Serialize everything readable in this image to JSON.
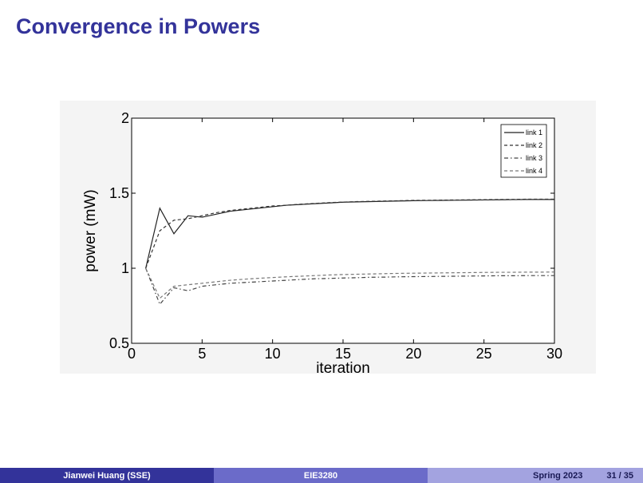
{
  "slide": {
    "title": "Convergence in Powers"
  },
  "footer": {
    "author": "Jianwei Huang  (SSE)",
    "course": "EIE3280",
    "term": "Spring 2023",
    "page": "31 / 35"
  },
  "chart_data": {
    "type": "line",
    "xlabel": "iteration",
    "ylabel": "power (mW)",
    "xlim": [
      0,
      30
    ],
    "ylim": [
      0.5,
      2
    ],
    "xticks": [
      0,
      5,
      10,
      15,
      20,
      25,
      30
    ],
    "yticks": [
      0.5,
      1,
      1.5,
      2
    ],
    "ytick_labels": [
      "0.5",
      "1",
      "1.5",
      "2"
    ],
    "grid": false,
    "legend_position": "top-right",
    "x": [
      1,
      2,
      3,
      4,
      5,
      6,
      7,
      8,
      9,
      10,
      11,
      12,
      13,
      14,
      15,
      16,
      17,
      18,
      19,
      20,
      21,
      22,
      23,
      24,
      25,
      26,
      27,
      28,
      29,
      30
    ],
    "series": [
      {
        "name": "link 1",
        "style": "solid",
        "color": "#222222",
        "values": [
          1.0,
          1.4,
          1.23,
          1.35,
          1.34,
          1.36,
          1.38,
          1.39,
          1.4,
          1.41,
          1.42,
          1.425,
          1.43,
          1.435,
          1.44,
          1.442,
          1.444,
          1.446,
          1.448,
          1.45,
          1.451,
          1.452,
          1.453,
          1.454,
          1.455,
          1.456,
          1.457,
          1.458,
          1.458,
          1.458
        ]
      },
      {
        "name": "link 2",
        "style": "dashed",
        "color": "#333333",
        "values": [
          1.0,
          1.25,
          1.32,
          1.33,
          1.35,
          1.37,
          1.385,
          1.395,
          1.405,
          1.415,
          1.42,
          1.427,
          1.432,
          1.437,
          1.441,
          1.444,
          1.446,
          1.448,
          1.45,
          1.452,
          1.453,
          1.454,
          1.455,
          1.456,
          1.457,
          1.458,
          1.459,
          1.46,
          1.46,
          1.46
        ]
      },
      {
        "name": "link 3",
        "style": "dashdot",
        "color": "#444444",
        "values": [
          1.0,
          0.76,
          0.87,
          0.85,
          0.88,
          0.89,
          0.9,
          0.905,
          0.91,
          0.915,
          0.92,
          0.925,
          0.93,
          0.932,
          0.935,
          0.937,
          0.94,
          0.941,
          0.943,
          0.944,
          0.945,
          0.946,
          0.947,
          0.948,
          0.949,
          0.95,
          0.95,
          0.951,
          0.951,
          0.951
        ]
      },
      {
        "name": "link 4",
        "style": "dashed",
        "color": "#777777",
        "values": [
          1.0,
          0.8,
          0.88,
          0.89,
          0.9,
          0.91,
          0.92,
          0.927,
          0.933,
          0.938,
          0.943,
          0.947,
          0.951,
          0.955,
          0.958,
          0.96,
          0.962,
          0.964,
          0.966,
          0.967,
          0.968,
          0.969,
          0.97,
          0.971,
          0.972,
          0.973,
          0.973,
          0.974,
          0.974,
          0.975
        ]
      }
    ]
  }
}
